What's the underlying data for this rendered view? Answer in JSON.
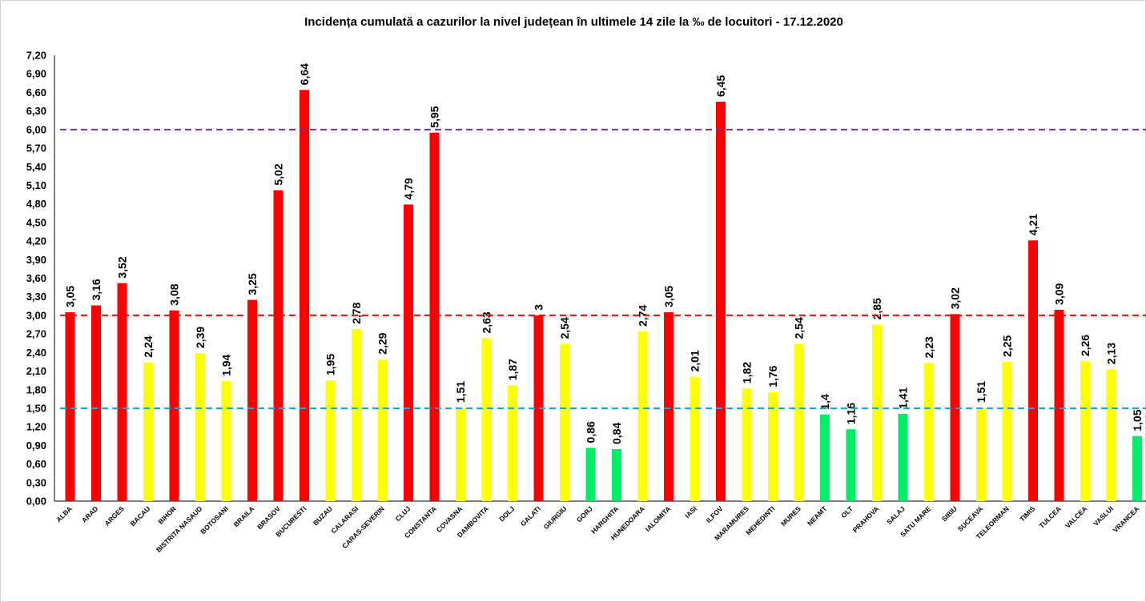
{
  "chart_data": {
    "type": "bar",
    "title": "Incidența cumulată a cazurilor la nivel județean în ultimele 14 zile la ‰ de locuitori - 17.12.2020",
    "xlabel": "",
    "ylabel": "",
    "ylim": [
      0,
      7.2
    ],
    "y_ticks": [
      "0,00",
      "0,30",
      "0,60",
      "0,90",
      "1,20",
      "1,50",
      "1,80",
      "2,10",
      "2,40",
      "2,70",
      "3,00",
      "3,30",
      "3,60",
      "3,90",
      "4,20",
      "4,50",
      "4,80",
      "5,10",
      "5,40",
      "5,70",
      "6,00",
      "6,30",
      "6,60",
      "6,90",
      "7,20"
    ],
    "grid": false,
    "legend": "none",
    "categories": [
      "ALBA",
      "ARAD",
      "ARGES",
      "BACAU",
      "BIHOR",
      "BISTRITA NASAUD",
      "BOTOSANI",
      "BRAILA",
      "BRASOV",
      "BUCURESTI",
      "BUZAU",
      "CALARASI",
      "CARAS-SEVERIN",
      "CLUJ",
      "CONSTANTA",
      "COVASNA",
      "DAMBOVITA",
      "DOLJ",
      "GALATI",
      "GIURGIU",
      "GORJ",
      "HARGHITA",
      "HUNEDOARA",
      "IALOMITA",
      "IASI",
      "ILFOV",
      "MARAMURES",
      "MEHEDINTI",
      "MURES",
      "NEAMT",
      "OLT",
      "PRAHOVA",
      "SALAJ",
      "SATU MARE",
      "SIBIU",
      "SUCEAVA",
      "TELEORMAN",
      "TIMIS",
      "TULCEA",
      "VALCEA",
      "VASLUI",
      "VRANCEA"
    ],
    "values": [
      3.05,
      3.16,
      3.52,
      2.24,
      3.08,
      2.39,
      1.94,
      3.25,
      5.02,
      6.64,
      1.95,
      2.78,
      2.29,
      4.79,
      5.95,
      1.51,
      2.63,
      1.87,
      3,
      2.54,
      0.86,
      0.84,
      2.74,
      3.05,
      2.01,
      6.45,
      1.82,
      1.76,
      2.54,
      1.4,
      1.16,
      2.85,
      1.41,
      2.23,
      3.02,
      1.51,
      2.25,
      4.21,
      3.09,
      2.26,
      2.13,
      1.05
    ],
    "data_labels": [
      "3,05",
      "3,16",
      "3,52",
      "2,24",
      "3,08",
      "2,39",
      "1,94",
      "3,25",
      "5,02",
      "6,64",
      "1,95",
      "2,78",
      "2,29",
      "4,79",
      "5,95",
      "1,51",
      "2,63",
      "1,87",
      "3",
      "2,54",
      "0,86",
      "0,84",
      "2,74",
      "3,05",
      "2,01",
      "6,45",
      "1,82",
      "1,76",
      "2,54",
      "1,4",
      "1,16",
      "2,85",
      "1,41",
      "2,23",
      "3,02",
      "1,51",
      "2,25",
      "4,21",
      "3,09",
      "2,26",
      "2,13",
      "1,05"
    ],
    "bar_colors": [
      "#ff0000",
      "#ff0000",
      "#ff0000",
      "#ffff00",
      "#ff0000",
      "#ffff00",
      "#ffff00",
      "#ff0000",
      "#ff0000",
      "#ff0000",
      "#ffff00",
      "#ffff00",
      "#ffff00",
      "#ff0000",
      "#ff0000",
      "#ffff00",
      "#ffff00",
      "#ffff00",
      "#ff0000",
      "#ffff00",
      "#00ee66",
      "#00ee66",
      "#ffff00",
      "#ff0000",
      "#ffff00",
      "#ff0000",
      "#ffff00",
      "#ffff00",
      "#ffff00",
      "#00ee66",
      "#00ee66",
      "#ffff00",
      "#00ee66",
      "#ffff00",
      "#ff0000",
      "#ffff00",
      "#ffff00",
      "#ff0000",
      "#ff0000",
      "#ffff00",
      "#ffff00",
      "#00ee66"
    ],
    "reference_lines": [
      {
        "value": 6.0,
        "color": "#7030a0"
      },
      {
        "value": 3.0,
        "color": "#ff0000"
      },
      {
        "value": 1.5,
        "color": "#00b0f0"
      }
    ]
  }
}
